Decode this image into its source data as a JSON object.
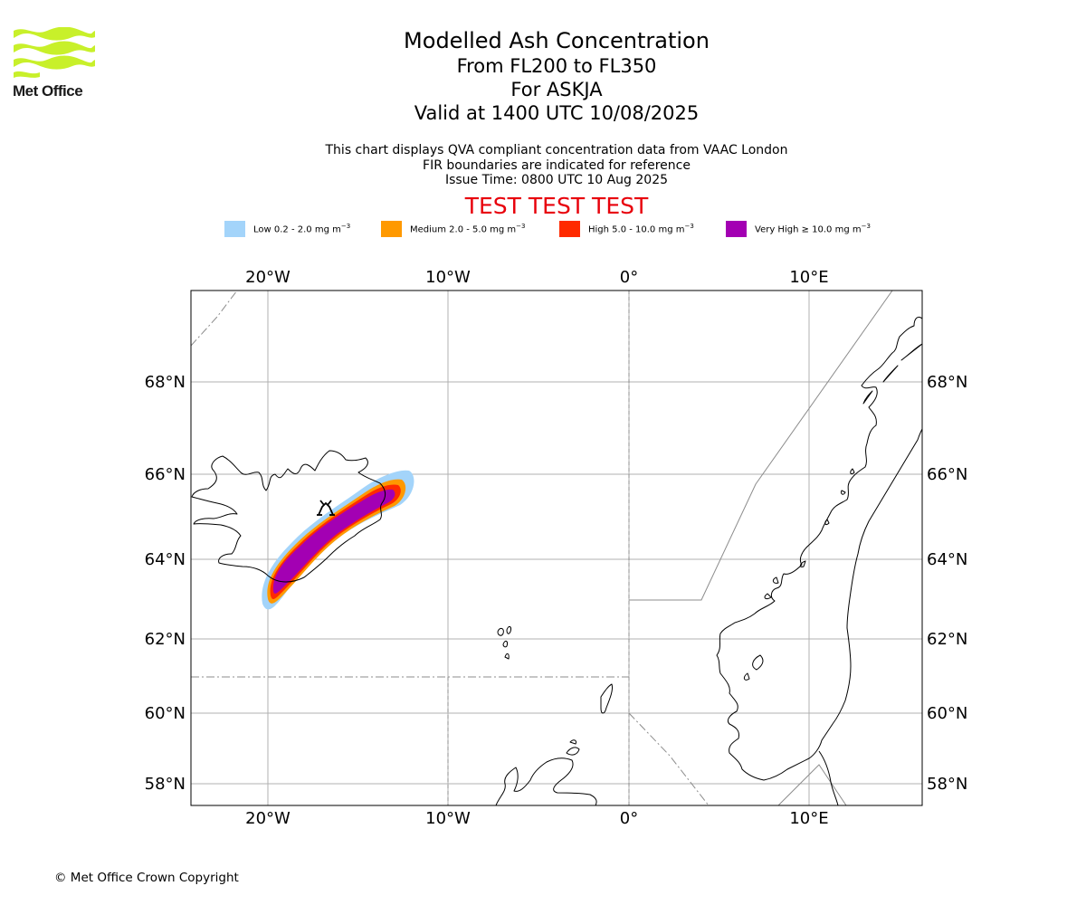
{
  "logo": {
    "text": "Met Office"
  },
  "header": {
    "title": "Modelled Ash Concentration",
    "levels": "From FL200 to FL350",
    "volcano": "For ASKJA",
    "valid": "Valid at 1400 UTC 10/08/2025"
  },
  "subtitle": {
    "line1": "This chart displays QVA compliant concentration data from VAAC London",
    "line2": "FIR boundaries are indicated for reference",
    "line3": "Issue Time: 0800 UTC 10 Aug 2025"
  },
  "test_banner": "TEST TEST TEST",
  "legend": [
    {
      "prefix": "Low 0.2 - 2.0 mg m",
      "exp": "−3",
      "color": "#a3d4fa"
    },
    {
      "prefix": "Medium 2.0 - 5.0 mg m",
      "exp": "−3",
      "color": "#ff9900"
    },
    {
      "prefix": "High 5.0 - 10.0 mg m",
      "exp": "−3",
      "color": "#ff2a00"
    },
    {
      "prefix": "Very High  ≥  10.0 mg m",
      "exp": "−3",
      "color": "#a300b3"
    }
  ],
  "map": {
    "lon_ticks": [
      "20°W",
      "10°W",
      "0°",
      "10°E"
    ],
    "lat_ticks": [
      "68°N",
      "66°N",
      "64°N",
      "62°N",
      "60°N",
      "58°N"
    ],
    "volcano_marker": "volcano-icon",
    "colors": {
      "grid": "#b0b0b0",
      "coast": "#000000",
      "fir": "#8c8c8c"
    }
  },
  "footer": "© Met Office Crown Copyright"
}
